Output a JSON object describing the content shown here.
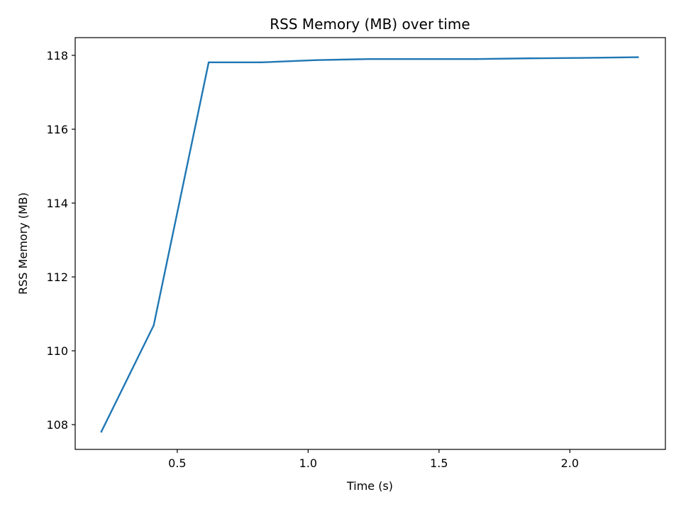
{
  "chart_data": {
    "type": "line",
    "title": "RSS Memory (MB) over time",
    "xlabel": "Time (s)",
    "ylabel": "RSS Memory (MB)",
    "xlim": [
      0.11,
      2.365
    ],
    "ylim": [
      107.33,
      118.48
    ],
    "grid": false,
    "legend": "none",
    "x_ticks": [
      0.5,
      1.0,
      1.5,
      2.0
    ],
    "x_tick_labels": [
      "0.5",
      "1.0",
      "1.5",
      "2.0"
    ],
    "y_ticks": [
      108,
      110,
      112,
      114,
      116,
      118
    ],
    "y_tick_labels": [
      "108",
      "110",
      "112",
      "114",
      "116",
      "118"
    ],
    "series": [
      {
        "color": "#1f77b4",
        "x": [
          0.21,
          0.41,
          0.62,
          0.82,
          1.03,
          1.23,
          1.44,
          1.64,
          1.85,
          2.05,
          2.26
        ],
        "y": [
          107.81,
          110.69,
          117.81,
          117.81,
          117.87,
          117.9,
          117.9,
          117.9,
          117.92,
          117.93,
          117.95
        ]
      }
    ]
  }
}
